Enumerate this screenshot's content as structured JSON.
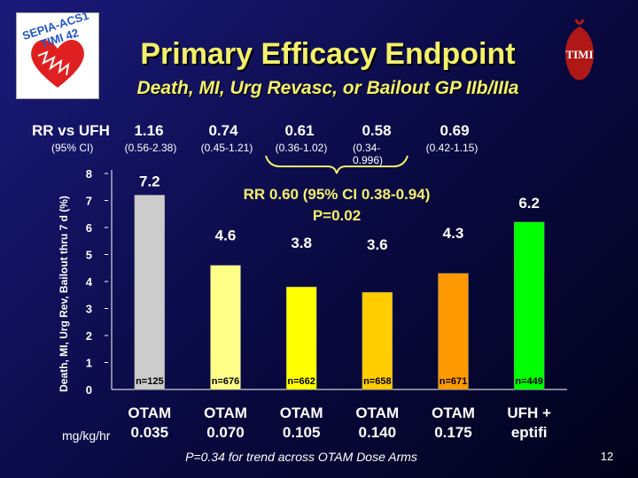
{
  "header": {
    "title": "Primary Efficacy Endpoint",
    "subtitle": "Death, MI, Urg Revasc, or Bailout GP IIb/IIIa",
    "logo_left_text": "SEPIA-ACS1 TIMI 42",
    "logo_right_text": "TIMI"
  },
  "rr_row": {
    "label": "RR vs UFH",
    "values": [
      "1.16",
      "0.74",
      "0.61",
      "0.58",
      "0.69"
    ]
  },
  "ci_row": {
    "label": "(95% CI)",
    "values": [
      "(0.56-2.38)",
      "(0.45-1.21)",
      "(0.36-1.02)",
      "(0.34-0.996)",
      "(0.42-1.15)"
    ]
  },
  "annotation": {
    "line1": "RR 0.60 (95% CI 0.38-0.94)",
    "line2": "P=0.02"
  },
  "footer": {
    "trend": "P=0.34 for trend across OTAM Dose Arms",
    "page_number": "12",
    "unit_label": "mg/kg/hr"
  },
  "chart_data": {
    "type": "bar",
    "ylabel": "Death, MI, Urg Rev, Bailout thru 7 d (%)",
    "ylim": [
      0,
      8
    ],
    "yticks": [
      "0",
      "1",
      "2",
      "3",
      "4",
      "5",
      "6",
      "7",
      "8"
    ],
    "categories": [
      {
        "line1": "OTAM",
        "line2": "0.035"
      },
      {
        "line1": "OTAM",
        "line2": "0.070"
      },
      {
        "line1": "OTAM",
        "line2": "0.105"
      },
      {
        "line1": "OTAM",
        "line2": "0.140"
      },
      {
        "line1": "OTAM",
        "line2": "0.175"
      },
      {
        "line1": "UFH +",
        "line2": "eptifi"
      }
    ],
    "values": [
      7.2,
      4.6,
      3.8,
      3.6,
      4.3,
      6.2
    ],
    "value_labels": [
      "7.2",
      "4.6",
      "3.8",
      "3.6",
      "4.3",
      "6.2"
    ],
    "n_labels": [
      "n=125",
      "n=676",
      "n=662",
      "n=658",
      "n=671",
      "n=449"
    ],
    "colors": [
      "#cccccc",
      "#ffff88",
      "#ffff00",
      "#ffcc00",
      "#ff9900",
      "#00ff00"
    ],
    "grid": false
  }
}
